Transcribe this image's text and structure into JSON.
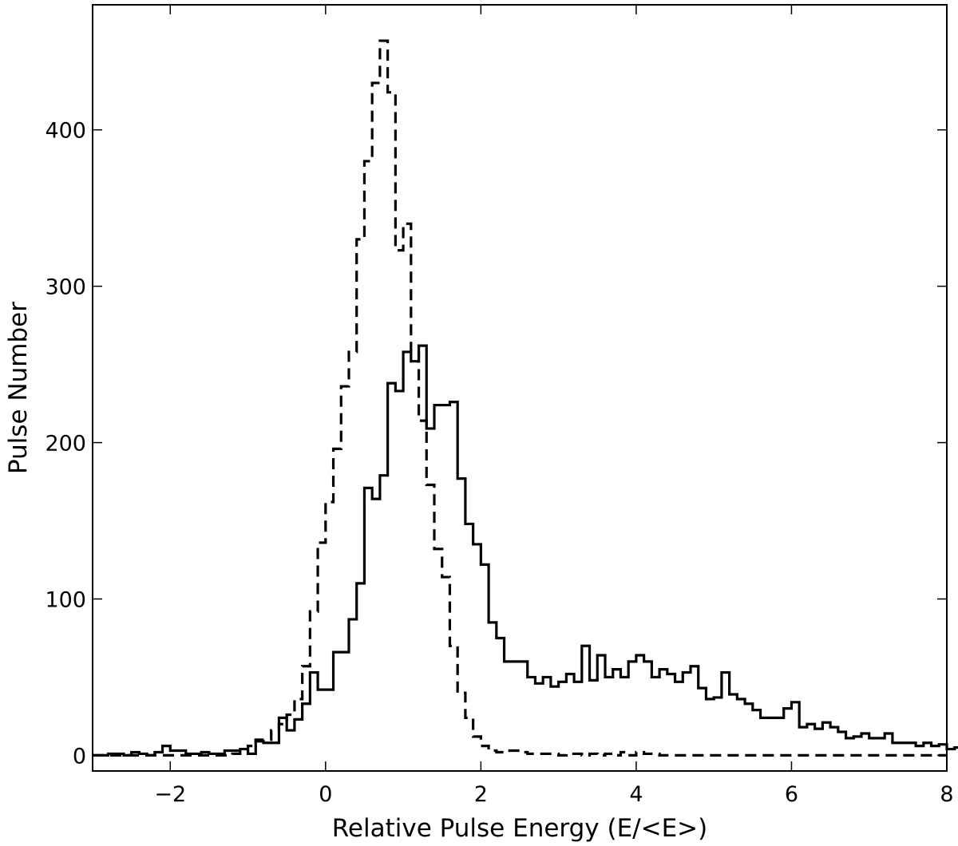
{
  "chart_data": {
    "type": "histogram",
    "xlabel": "Relative Pulse Energy (E/<E>)",
    "ylabel": "Pulse Number",
    "xlim": [
      -3,
      8
    ],
    "ylim": [
      -10,
      480
    ],
    "xticks": [
      {
        "value": -2,
        "label": "−2"
      },
      {
        "value": 0,
        "label": "0"
      },
      {
        "value": 2,
        "label": "2"
      },
      {
        "value": 4,
        "label": "4"
      },
      {
        "value": 6,
        "label": "6"
      },
      {
        "value": 8,
        "label": "8"
      }
    ],
    "yticks": [
      {
        "value": 0,
        "label": "0"
      },
      {
        "value": 100,
        "label": "100"
      },
      {
        "value": 200,
        "label": "200"
      },
      {
        "value": 300,
        "label": "300"
      },
      {
        "value": 400,
        "label": "400"
      }
    ],
    "grid": false,
    "bin_start": -3.0,
    "bin_width": 0.1,
    "series": [
      {
        "style": "solid",
        "color": "#000000",
        "values": [
          0,
          0,
          1,
          1,
          0,
          2,
          1,
          0,
          2,
          6,
          3,
          3,
          1,
          1,
          2,
          1,
          1,
          3,
          3,
          4,
          1,
          9,
          8,
          8,
          24,
          16,
          23,
          33,
          53,
          42,
          42,
          66,
          66,
          87,
          110,
          171,
          164,
          179,
          238,
          233,
          258,
          252,
          262,
          209,
          224,
          224,
          226,
          177,
          148,
          135,
          122,
          85,
          75,
          60,
          60,
          60,
          50,
          46,
          50,
          44,
          47,
          52,
          47,
          70,
          48,
          64,
          50,
          55,
          50,
          60,
          64,
          60,
          50,
          55,
          52,
          47,
          53,
          57,
          43,
          36,
          37,
          53,
          39,
          36,
          33,
          29,
          24,
          24,
          24,
          30,
          34,
          18,
          20,
          17,
          21,
          18,
          15,
          11,
          12,
          14,
          11,
          11,
          14,
          8,
          8,
          8,
          6,
          8,
          6,
          7,
          4,
          5,
          5,
          5,
          4,
          2,
          2,
          2,
          2,
          3,
          1,
          2,
          2,
          2,
          3,
          0,
          1,
          1
        ]
      },
      {
        "style": "dashed",
        "color": "#000000",
        "values": [
          0,
          0,
          0,
          0,
          0,
          0,
          0,
          0,
          0,
          0,
          0,
          0,
          0,
          0,
          0,
          0,
          0,
          0,
          1,
          2,
          6,
          10,
          10,
          16,
          20,
          26,
          36,
          57,
          92,
          136,
          162,
          196,
          236,
          258,
          330,
          380,
          430,
          457,
          424,
          323,
          340,
          258,
          214,
          173,
          132,
          114,
          70,
          40,
          24,
          12,
          6,
          3,
          2,
          3,
          3,
          2,
          1,
          1,
          1,
          1,
          0,
          1,
          1,
          0,
          1,
          0,
          1,
          0,
          2,
          0,
          2,
          1,
          1,
          0,
          0,
          0,
          0,
          0,
          0,
          0,
          0,
          0,
          0,
          0,
          0,
          0,
          0,
          0,
          0,
          0,
          0,
          0,
          0,
          0,
          0,
          0,
          0,
          0,
          0,
          0,
          0,
          0,
          0,
          0,
          0,
          0,
          0,
          0,
          0,
          0
        ]
      }
    ]
  }
}
